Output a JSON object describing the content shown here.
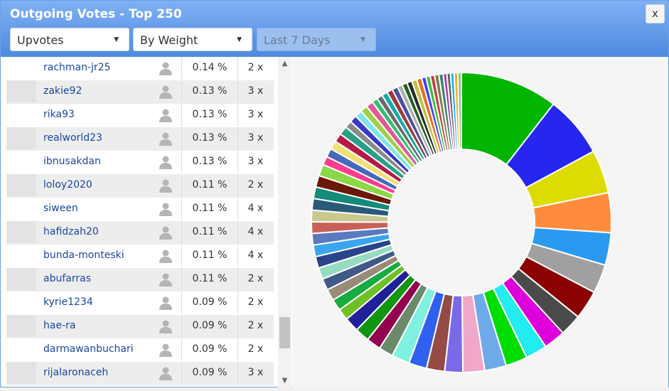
{
  "window": {
    "title": "Outgoing Votes - Top 250",
    "close_label": "x"
  },
  "filters": {
    "type": {
      "value": "Upvotes"
    },
    "sort": {
      "value": "By Weight"
    },
    "period": {
      "value": "Last 7 Days"
    }
  },
  "rows": [
    {
      "name": "rachman-jr25",
      "pct": "0.14 %",
      "count": "2 x"
    },
    {
      "name": "zakie92",
      "pct": "0.13 %",
      "count": "3 x"
    },
    {
      "name": "rika93",
      "pct": "0.13 %",
      "count": "3 x"
    },
    {
      "name": "realworld23",
      "pct": "0.13 %",
      "count": "3 x"
    },
    {
      "name": "ibnusakdan",
      "pct": "0.13 %",
      "count": "3 x"
    },
    {
      "name": "loloy2020",
      "pct": "0.11 %",
      "count": "2 x"
    },
    {
      "name": "siween",
      "pct": "0.11 %",
      "count": "4 x"
    },
    {
      "name": "hafidzah20",
      "pct": "0.11 %",
      "count": "4 x"
    },
    {
      "name": "bunda-monteski",
      "pct": "0.11 %",
      "count": "4 x"
    },
    {
      "name": "abufarras",
      "pct": "0.11 %",
      "count": "2 x"
    },
    {
      "name": "kyrie1234",
      "pct": "0.09 %",
      "count": "2 x"
    },
    {
      "name": "hae-ra",
      "pct": "0.09 %",
      "count": "2 x"
    },
    {
      "name": "darmawanbuchari",
      "pct": "0.09 %",
      "count": "2 x"
    },
    {
      "name": "rijalaronaceh",
      "pct": "0.09 %",
      "count": "3 x"
    }
  ],
  "chart_data": {
    "type": "pie",
    "style": "donut",
    "values": [
      13.5,
      8.5,
      6.0,
      5.5,
      4.5,
      4.0,
      4.0,
      3.0,
      3.0,
      3.0,
      3.0,
      3.0,
      3.0,
      2.5,
      2.5,
      2.5,
      2.5,
      2.0,
      2.0,
      2.0,
      2.0,
      1.6,
      1.6,
      1.6,
      1.6,
      1.6,
      1.6,
      1.6,
      1.6,
      1.6,
      1.6,
      1.6,
      1.6,
      1.6,
      1.6,
      1.2,
      1.2,
      1.2,
      1.2,
      1.2,
      1.0,
      1.0,
      1.0,
      1.0,
      1.0,
      0.8,
      0.8,
      0.8,
      0.8,
      0.8,
      0.7,
      0.7,
      0.7,
      0.7,
      0.7,
      0.6,
      0.6,
      0.6,
      0.6,
      0.6,
      0.5,
      0.5,
      0.5,
      0.5,
      0.5
    ],
    "colors": [
      "#00b400",
      "#2626ee",
      "#dcdc00",
      "#ff8c3c",
      "#2a9af0",
      "#a0a0a0",
      "#8b0000",
      "#4a4a4a",
      "#dd00dd",
      "#22ecf0",
      "#00dd00",
      "#6eaaea",
      "#f0a8c8",
      "#7a6ae8",
      "#964a46",
      "#3060f0",
      "#80f0e0",
      "#6a8a6a",
      "#940050",
      "#129612",
      "#20209a",
      "#70c028",
      "#18ac40",
      "#9a8a78",
      "#405a88",
      "#96dcc0",
      "#28448a",
      "#3aa4f0",
      "#5a7ac0",
      "#c86058",
      "#c8c890",
      "#2a5a78",
      "#148a78",
      "#6a1808",
      "#8ad848",
      "#ff3a90",
      "#4868b8",
      "#f0e078",
      "#b41a48",
      "#28a088",
      "#8a8a8a",
      "#3838c8",
      "#7ae8e8",
      "#a0d048",
      "#e05a98",
      "#30c070",
      "#6a6a6a",
      "#18a8a8",
      "#9a3a3a",
      "#5050a0",
      "#b0b0b0",
      "#206020",
      "#2a2a2a",
      "#c0c040",
      "#e87020",
      "#4040ff",
      "#40c040",
      "#c04040",
      "#808040",
      "#408080",
      "#a040a0",
      "#606060",
      "#20b0f0",
      "#f0b020",
      "#90c090"
    ]
  }
}
